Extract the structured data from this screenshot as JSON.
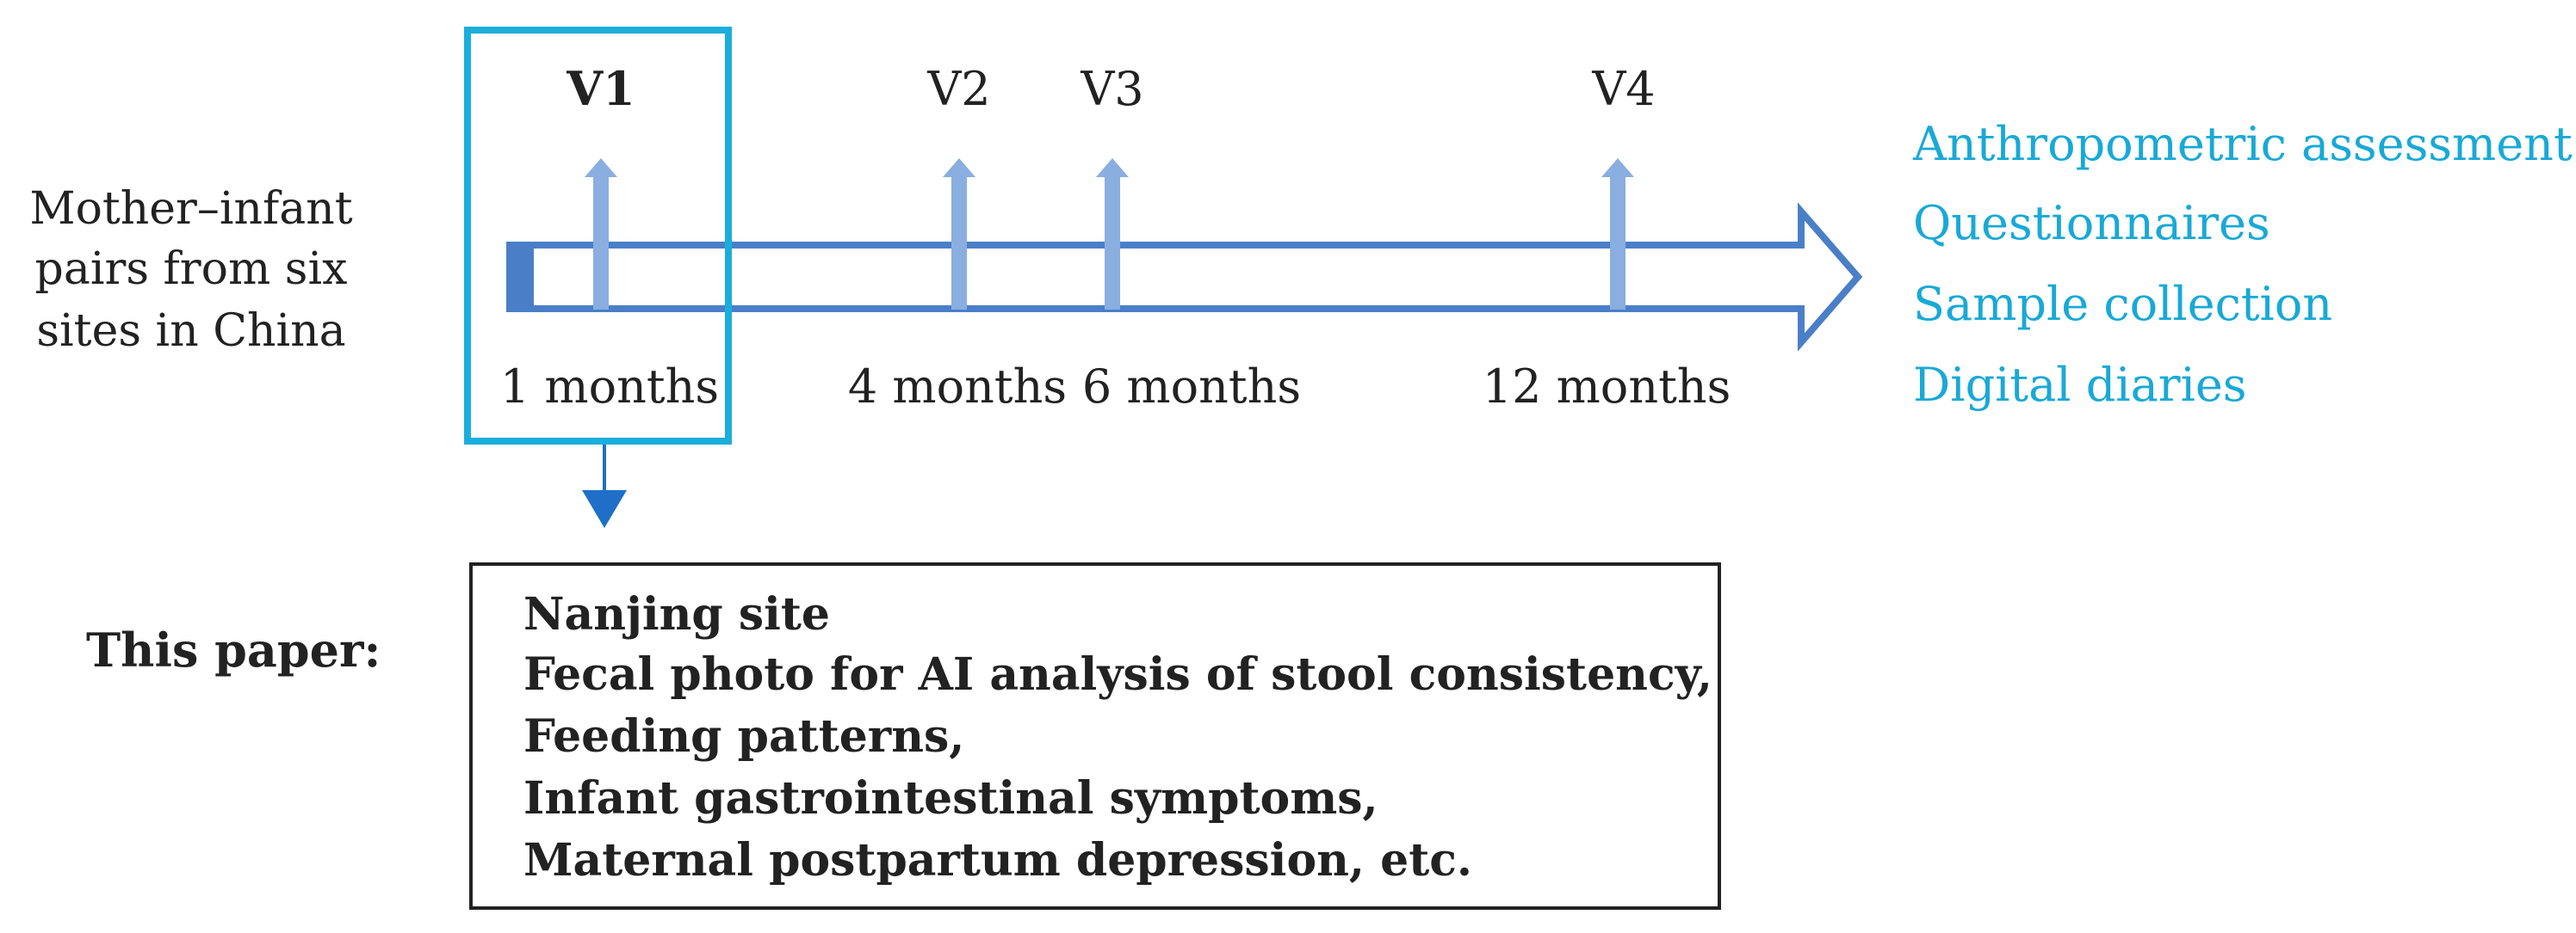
{
  "left_label": {
    "lines": [
      "Mother–infant",
      "pairs from six",
      "sites in China"
    ]
  },
  "visits": [
    {
      "label": "V1",
      "time": "1 months"
    },
    {
      "label": "V2",
      "time": "4 months"
    },
    {
      "label": "V3",
      "time": "6 months"
    },
    {
      "label": "V4",
      "time": "12 months"
    }
  ],
  "measurements": [
    "Anthropometric assessment",
    "Questionnaires",
    "Sample collection",
    "Digital diaries"
  ],
  "this_paper": {
    "label": "This paper:",
    "lines": [
      "Nanjing site",
      "Fecal photo for AI analysis of stool consistency,",
      "Feeding patterns,",
      "Infant gastrointestinal symptoms,",
      "Maternal postpartum depression, etc."
    ]
  },
  "colors": {
    "timeline": "#4a7fc8",
    "visit_arrow": "#8aaee0",
    "highlight": "#1aaedc",
    "measurement_text": "#19a9d6",
    "down_arrow": "#1f6fc8",
    "text": "#222222"
  }
}
